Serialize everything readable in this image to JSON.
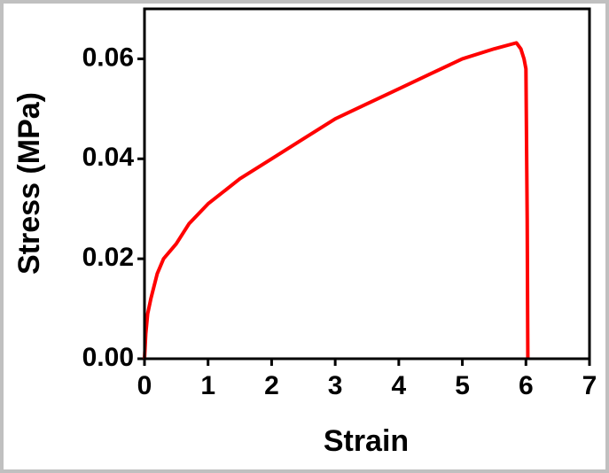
{
  "chart_data": {
    "type": "line",
    "x_label": "Strain",
    "y_label": "Stress (MPa)",
    "xlim": [
      0,
      7
    ],
    "ylim": [
      0,
      0.07
    ],
    "xticks": [
      0,
      1,
      2,
      3,
      4,
      5,
      6,
      7
    ],
    "yticks": [
      {
        "value": 0,
        "label": "0.00"
      },
      {
        "value": 0.02,
        "label": "0.02"
      },
      {
        "value": 0.04,
        "label": "0.04"
      },
      {
        "value": 0.06,
        "label": "0.06"
      }
    ],
    "series": [
      {
        "color": "#ff0000",
        "x": [
          0,
          0.02,
          0.05,
          0.1,
          0.2,
          0.3,
          0.5,
          0.7,
          1.0,
          1.5,
          2.0,
          2.5,
          3.0,
          3.5,
          4.0,
          4.5,
          5.0,
          5.5,
          5.85,
          5.92,
          5.97,
          6.0,
          6.02,
          6.03
        ],
        "values": [
          0,
          0.005,
          0.009,
          0.012,
          0.017,
          0.02,
          0.023,
          0.027,
          0.031,
          0.036,
          0.04,
          0.044,
          0.048,
          0.051,
          0.054,
          0.057,
          0.06,
          0.062,
          0.0632,
          0.062,
          0.06,
          0.058,
          0.028,
          0
        ]
      }
    ]
  }
}
